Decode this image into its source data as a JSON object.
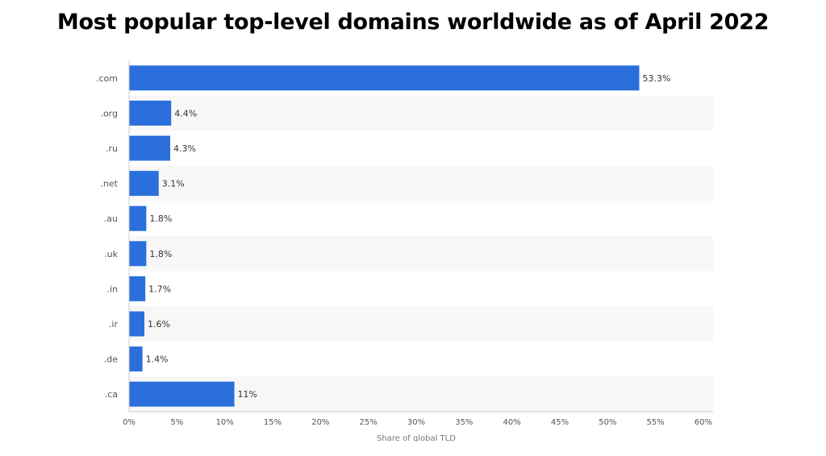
{
  "title": "Most popular top-level domains worldwide as of April 2022",
  "chart_data": {
    "type": "bar",
    "orientation": "horizontal",
    "title": "Most popular top-level domains worldwide as of April 2022",
    "xlabel": "Share of global TLD",
    "ylabel": "",
    "categories": [
      ".com",
      ".org",
      ".ru",
      ".net",
      ".au",
      ".uk",
      ".in",
      ".ir",
      ".de",
      ".ca"
    ],
    "values": [
      53.3,
      4.4,
      4.3,
      3.1,
      1.8,
      1.8,
      1.7,
      1.6,
      1.4,
      11
    ],
    "value_labels": [
      "53.3%",
      "4.4%",
      "4.3%",
      "3.1%",
      "1.8%",
      "1.8%",
      "1.7%",
      "1.6%",
      "1.4%",
      "11%"
    ],
    "xlim": [
      0,
      60
    ],
    "xticks": [
      0,
      5,
      10,
      15,
      20,
      25,
      30,
      35,
      40,
      45,
      50,
      55,
      60
    ],
    "xtick_labels": [
      "0%",
      "5%",
      "10%",
      "15%",
      "20%",
      "25%",
      "30%",
      "35%",
      "40%",
      "45%",
      "50%",
      "55%",
      "60%"
    ],
    "grid": false,
    "alternating_row_bands": true,
    "legend": "none",
    "colors": {
      "bar": "#2a6fdb",
      "band": "#f7f7f7",
      "axis": "#cccccc"
    }
  }
}
